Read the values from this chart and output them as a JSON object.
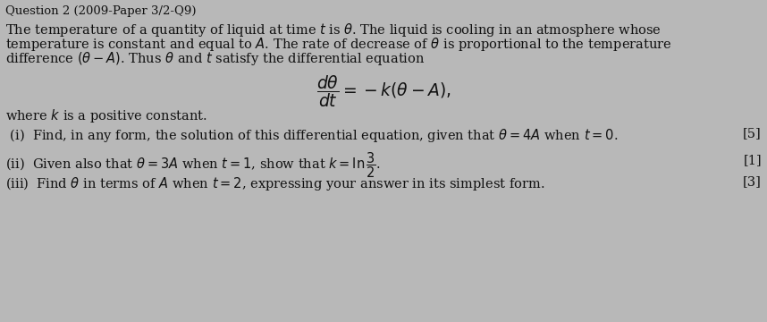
{
  "title": "Question 2 (2009-Paper 3/2-Q9)",
  "bg_color": "#b8b8b8",
  "text_color": "#111111",
  "title_fontsize": 9.5,
  "body_fontsize": 10.5,
  "small_fontsize": 10.0,
  "intro_line1": "The temperature of a quantity of liquid at time $t$ is $\\theta$. The liquid is cooling in an atmosphere whose",
  "intro_line2": "temperature is constant and equal to $A$. The rate of decrease of $\\theta$ is proportional to the temperature",
  "intro_line3": "difference $(\\theta - A)$. Thus $\\theta$ and $t$ satisfy the differential equation",
  "equation": "$\\dfrac{d\\theta}{dt} = -k(\\theta - A),$",
  "where_text": "where $k$ is a positive constant.",
  "part_i_text": " (i)  Find, in any form, the solution of this differential equation, given that $\\theta = 4A$ when $t = 0$.",
  "part_i_marks": "[5]",
  "part_ii_text": "(ii)  Given also that $\\theta = 3A$ when $t = 1$, show that $k = \\ln\\dfrac{3}{2}$.",
  "part_ii_marks": "[1]",
  "part_iii_text": "(iii)  Find $\\theta$ in terms of $A$ when $t = 2$, expressing your answer in its simplest form.",
  "part_iii_marks": "[3]"
}
